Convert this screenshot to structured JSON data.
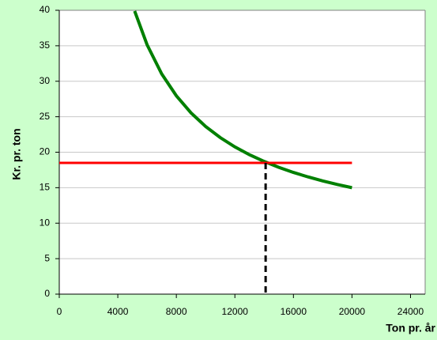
{
  "chart_data": {
    "type": "line",
    "x_label": "Ton pr. år",
    "y_label": "Kr. pr. ton",
    "series": [
      {
        "color": "#008000",
        "dash": false,
        "width": 4,
        "x": [
          5150,
          6000,
          7000,
          8000,
          9000,
          10000,
          11000,
          12000,
          13000,
          14000,
          15000,
          16000,
          17000,
          18000,
          19000,
          20000
        ],
        "values": [
          39.89,
          35.14,
          31.03,
          27.95,
          25.55,
          23.63,
          22.06,
          20.75,
          19.64,
          18.7,
          17.87,
          17.15,
          16.52,
          15.95,
          15.45,
          15.0
        ]
      },
      {
        "color": "#ff0000",
        "dash": false,
        "width": 3,
        "x": [
          0,
          20000
        ],
        "values": [
          18.5,
          18.5
        ]
      },
      {
        "color": "#000000",
        "dash": true,
        "width": 3,
        "x": [
          14100,
          14100
        ],
        "values": [
          18.5,
          0
        ]
      }
    ],
    "xlim": [
      0,
      25000
    ],
    "xticks": [
      0,
      4000,
      8000,
      12000,
      16000,
      20000,
      24000
    ],
    "ylim": [
      0,
      40
    ],
    "yticks": [
      0,
      5,
      10,
      15,
      20,
      25,
      30,
      35,
      40
    ],
    "grid": true
  }
}
